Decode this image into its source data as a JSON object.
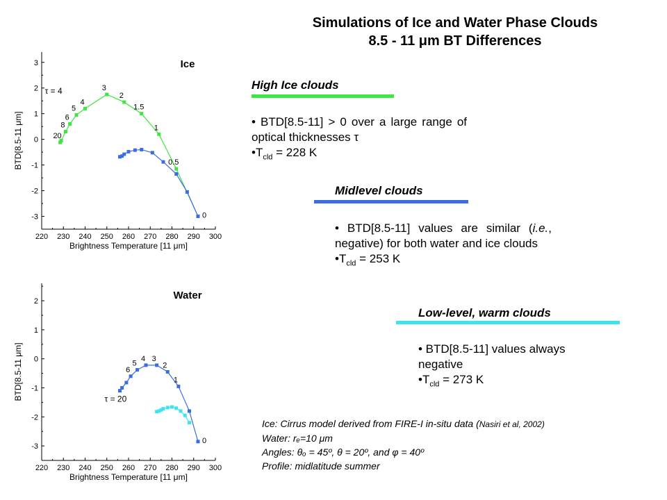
{
  "header": {
    "title_line1": "Simulations of Ice and Water Phase Clouds",
    "title_line2": "8.5 - 11 μm BT Differences"
  },
  "colors": {
    "green": "#3fe63f",
    "blue": "#3b6ce0",
    "cyan": "#3de4f0"
  },
  "sections": [
    {
      "title": "High Ice clouds",
      "bar_color": "#3fe63f",
      "bullet1": "• BTD[8.5-11] > 0 over a large range of optical thicknesses τ",
      "tcld_prefix": "•T",
      "tcld_sub": "cld",
      "tcld_value": " = 228 K"
    },
    {
      "title": "Midlevel clouds",
      "bar_color": "#3b6ce0",
      "bullet1_a": "• BTD[8.5-11] values are similar (",
      "bullet1_ie": "i.e.",
      "bullet1_b": ", negative) for both water and ice clouds",
      "tcld_prefix": "•T",
      "tcld_sub": "cld",
      "tcld_value": " = 253 K"
    },
    {
      "title": "Low-level, warm clouds",
      "bar_color": "#3de4f0",
      "bullet1": "• BTD[8.5-11] values always negative",
      "tcld_prefix": "•T",
      "tcld_sub": "cld",
      "tcld_value": " = 273 K"
    }
  ],
  "footnote": {
    "line1_a": "Ice: Cirrus model derived from FIRE-I in-situ data (",
    "line1_b": "Nasiri et al, 2002)",
    "line2": "Water: rₑ=10 μm",
    "line3": "Angles: θₒ = 45º, θ = 20º, and φ = 40º",
    "line4": "Profile: midlatitude summer"
  },
  "chart_data": [
    {
      "type": "line",
      "title": "Ice",
      "xlabel": "Brightness Temperature [11 μm]",
      "ylabel": "BTD[8.5-11 μm]",
      "xlim": [
        220,
        300
      ],
      "ylim": [
        -3.5,
        3.4
      ],
      "xticks": [
        220,
        230,
        240,
        250,
        260,
        270,
        280,
        290,
        300
      ],
      "yticks": [
        -3,
        -2,
        -1,
        0,
        1,
        2,
        3
      ],
      "tau_label": "τ = 4",
      "series": [
        {
          "color": "#3fe63f",
          "x": [
            228.5,
            229,
            231,
            233,
            236,
            240,
            250,
            258,
            266,
            274,
            282,
            292
          ],
          "y": [
            -0.12,
            -0.05,
            0.3,
            0.6,
            0.95,
            1.2,
            1.75,
            1.45,
            1.0,
            0.2,
            -1.15,
            -3.0
          ],
          "labels": [
            "20",
            "",
            "8",
            "6",
            "5",
            "4",
            "3",
            "2",
            "1.5",
            "1",
            "0.5",
            "0"
          ]
        },
        {
          "color": "#3b6ce0",
          "x": [
            256,
            257,
            258,
            260,
            263,
            266,
            271,
            276,
            282,
            287,
            292
          ],
          "y": [
            -0.68,
            -0.65,
            -0.58,
            -0.48,
            -0.42,
            -0.4,
            -0.52,
            -0.88,
            -1.35,
            -2.05,
            -3.0
          ],
          "labels": []
        }
      ]
    },
    {
      "type": "line",
      "title": "Water",
      "xlabel": "Brightness Temperature [11 μm]",
      "ylabel": "BTD[8.5-11 μm]",
      "xlim": [
        220,
        300
      ],
      "ylim": [
        -3.5,
        2.6
      ],
      "xticks": [
        220,
        230,
        240,
        250,
        260,
        270,
        280,
        290,
        300
      ],
      "yticks": [
        -3,
        -2,
        -1,
        0,
        1,
        2
      ],
      "tau_label": "τ = 20",
      "series": [
        {
          "color": "#3b6ce0",
          "x": [
            256,
            257,
            259,
            261,
            264,
            268,
            273,
            278,
            283,
            288,
            292
          ],
          "y": [
            -1.1,
            -1.0,
            -0.82,
            -0.6,
            -0.38,
            -0.22,
            -0.22,
            -0.45,
            -0.95,
            -1.8,
            -2.85
          ],
          "labels": [
            "",
            "",
            "",
            "6",
            "5",
            "4",
            "3",
            "2",
            "1",
            "",
            "0"
          ]
        },
        {
          "color": "#3de4f0",
          "x": [
            273,
            274,
            275,
            276,
            278,
            280,
            282,
            284,
            286,
            288
          ],
          "y": [
            -1.82,
            -1.8,
            -1.76,
            -1.72,
            -1.68,
            -1.66,
            -1.7,
            -1.8,
            -1.95,
            -2.2
          ],
          "labels": []
        }
      ]
    }
  ]
}
